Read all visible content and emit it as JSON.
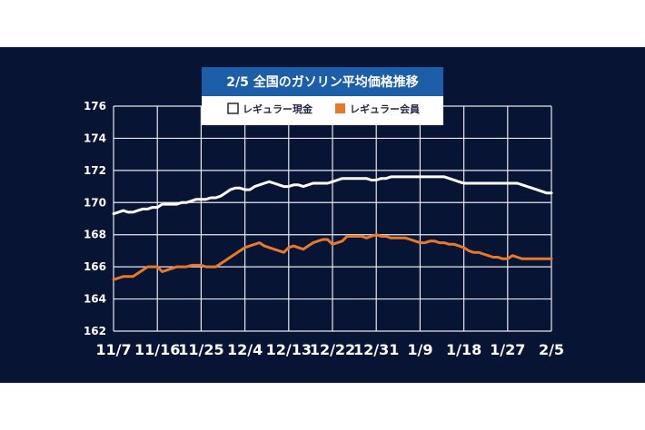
{
  "chart_data": {
    "type": "line",
    "title": "2/5 全国のガソリン平均価格推移",
    "xlabel": "",
    "ylabel": "",
    "ylim": [
      162,
      176
    ],
    "yticks": [
      "176",
      "174",
      "172",
      "170",
      "168",
      "166",
      "164",
      "162"
    ],
    "x": [
      "11/7",
      "11/8",
      "11/9",
      "11/10",
      "11/11",
      "11/12",
      "11/13",
      "11/14",
      "11/15",
      "11/16",
      "11/17",
      "11/18",
      "11/19",
      "11/20",
      "11/21",
      "11/22",
      "11/23",
      "11/24",
      "11/25",
      "11/26",
      "11/27",
      "11/28",
      "11/29",
      "11/30",
      "12/1",
      "12/2",
      "12/3",
      "12/4",
      "12/5",
      "12/6",
      "12/7",
      "12/8",
      "12/9",
      "12/10",
      "12/11",
      "12/12",
      "12/13",
      "12/14",
      "12/15",
      "12/16",
      "12/17",
      "12/18",
      "12/19",
      "12/20",
      "12/21",
      "12/22",
      "12/23",
      "12/24",
      "12/25",
      "12/26",
      "12/27",
      "12/28",
      "12/29",
      "12/30",
      "12/31",
      "1/1",
      "1/2",
      "1/3",
      "1/4",
      "1/5",
      "1/6",
      "1/7",
      "1/8",
      "1/9",
      "1/10",
      "1/11",
      "1/12",
      "1/13",
      "1/14",
      "1/15",
      "1/16",
      "1/17",
      "1/18",
      "1/19",
      "1/20",
      "1/21",
      "1/22",
      "1/23",
      "1/24",
      "1/25",
      "1/26",
      "1/27",
      "1/28",
      "1/29",
      "1/30",
      "1/31",
      "2/1",
      "2/2",
      "2/3",
      "2/4",
      "2/5"
    ],
    "xticks": [
      "11/7",
      "11/16",
      "11/25",
      "12/4",
      "12/13",
      "12/22",
      "12/31",
      "1/9",
      "1/18",
      "1/27",
      "2/5"
    ],
    "series": [
      {
        "name": "レギュラー現金",
        "color": "#ffffff",
        "values": [
          169.3,
          169.4,
          169.5,
          169.4,
          169.4,
          169.5,
          169.6,
          169.6,
          169.7,
          169.7,
          169.9,
          169.9,
          169.9,
          169.9,
          170.0,
          170.0,
          170.1,
          170.2,
          170.2,
          170.2,
          170.3,
          170.3,
          170.4,
          170.6,
          170.8,
          170.9,
          170.9,
          170.8,
          170.8,
          171.0,
          171.1,
          171.2,
          171.3,
          171.2,
          171.1,
          171.0,
          171.0,
          171.1,
          171.1,
          171.0,
          171.1,
          171.2,
          171.2,
          171.2,
          171.2,
          171.3,
          171.4,
          171.5,
          171.5,
          171.5,
          171.5,
          171.5,
          171.5,
          171.4,
          171.4,
          171.5,
          171.5,
          171.6,
          171.6,
          171.6,
          171.6,
          171.6,
          171.6,
          171.6,
          171.6,
          171.6,
          171.6,
          171.6,
          171.6,
          171.5,
          171.4,
          171.3,
          171.2,
          171.2,
          171.2,
          171.2,
          171.2,
          171.2,
          171.2,
          171.2,
          171.2,
          171.2,
          171.2,
          171.2,
          171.1,
          171.0,
          170.9,
          170.8,
          170.7,
          170.6,
          170.6
        ]
      },
      {
        "name": "レギュラー会員",
        "color": "#e8782a",
        "values": [
          165.2,
          165.3,
          165.4,
          165.4,
          165.4,
          165.6,
          165.8,
          166.0,
          166.0,
          166.0,
          165.7,
          165.8,
          165.9,
          166.0,
          166.0,
          166.0,
          166.1,
          166.1,
          166.1,
          166.0,
          166.0,
          166.0,
          166.2,
          166.4,
          166.6,
          166.8,
          167.0,
          167.2,
          167.3,
          167.4,
          167.5,
          167.3,
          167.2,
          167.1,
          167.0,
          166.9,
          167.2,
          167.3,
          167.2,
          167.1,
          167.3,
          167.5,
          167.6,
          167.7,
          167.7,
          167.4,
          167.5,
          167.6,
          167.9,
          167.9,
          167.9,
          167.9,
          167.8,
          167.9,
          168.0,
          167.9,
          167.9,
          167.8,
          167.8,
          167.8,
          167.8,
          167.7,
          167.6,
          167.5,
          167.5,
          167.6,
          167.6,
          167.5,
          167.5,
          167.4,
          167.4,
          167.3,
          167.2,
          167.0,
          166.9,
          166.9,
          166.8,
          166.7,
          166.6,
          166.6,
          166.5,
          166.5,
          166.7,
          166.6,
          166.5,
          166.5,
          166.5,
          166.5,
          166.5,
          166.5,
          166.5
        ]
      }
    ],
    "grid": true,
    "legend": "top-center",
    "background": "#071433",
    "title_bar_color": "#1d5ea8"
  }
}
